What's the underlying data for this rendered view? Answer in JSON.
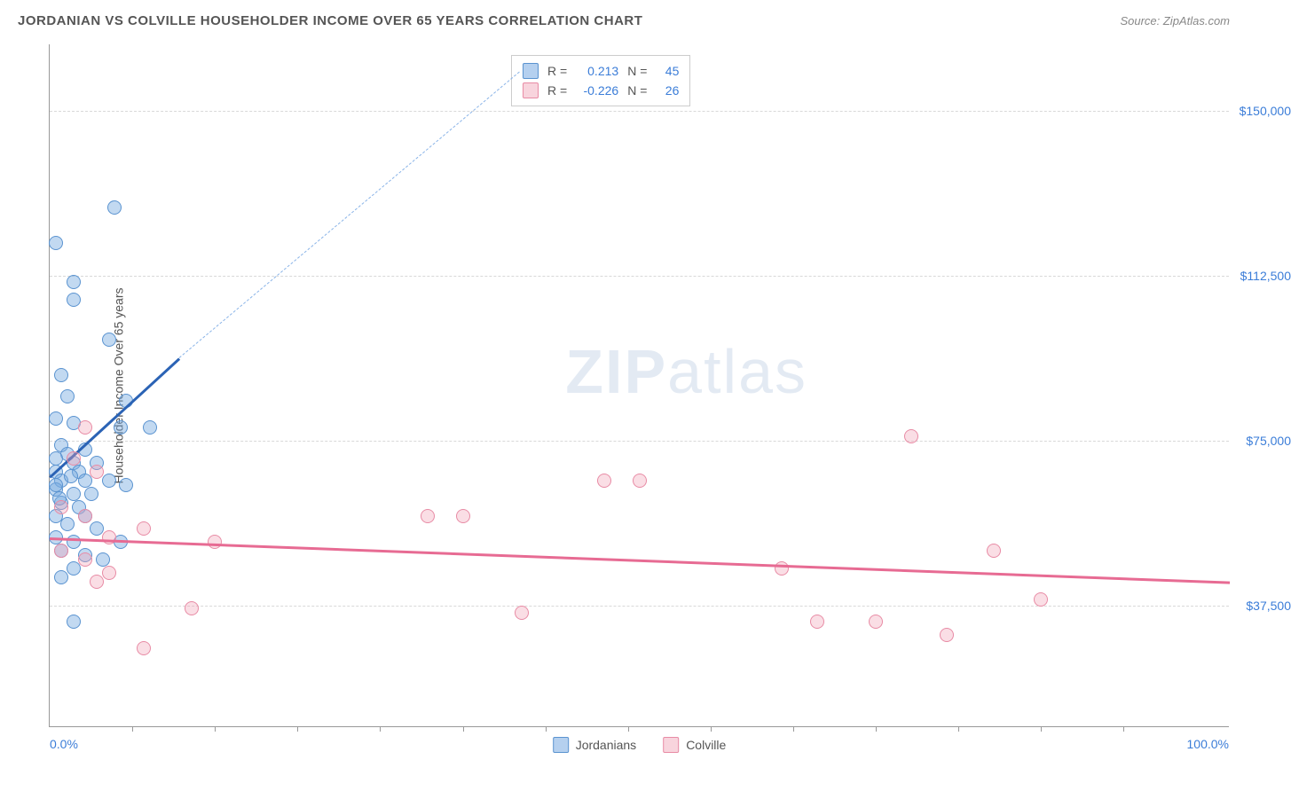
{
  "title": "JORDANIAN VS COLVILLE HOUSEHOLDER INCOME OVER 65 YEARS CORRELATION CHART",
  "source": "Source: ZipAtlas.com",
  "watermark_bold": "ZIP",
  "watermark_rest": "atlas",
  "chart": {
    "type": "scatter",
    "background_color": "#ffffff",
    "grid_color": "#d8d8d8",
    "border_color": "#999999",
    "text_color": "#555555",
    "value_color": "#3b7dd8",
    "yaxis_title": "Householder Income Over 65 years",
    "xlim": [
      0,
      100
    ],
    "ylim": [
      10000,
      165000
    ],
    "yticks": [
      {
        "v": 37500,
        "label": "$37,500"
      },
      {
        "v": 75000,
        "label": "$75,000"
      },
      {
        "v": 112500,
        "label": "$112,500"
      },
      {
        "v": 150000,
        "label": "$150,000"
      }
    ],
    "xticks_pct": [
      7,
      14,
      21,
      28,
      35,
      42,
      49,
      56,
      63,
      70,
      77,
      84,
      91
    ],
    "xaxis_left": "0.0%",
    "xaxis_right": "100.0%",
    "series": [
      {
        "name": "Jordanians",
        "color_fill": "rgba(120,170,225,0.45)",
        "color_stroke": "#5a93d0",
        "marker_radius": 8,
        "trend": {
          "x1": 0,
          "y1": 67000,
          "x2": 11,
          "y2": 94000,
          "color": "#2b63b5",
          "width": 2.5
        },
        "dashed_to_box": true,
        "points": [
          {
            "x": 0.5,
            "y": 120000
          },
          {
            "x": 5.5,
            "y": 128000
          },
          {
            "x": 2,
            "y": 111000
          },
          {
            "x": 2,
            "y": 107000
          },
          {
            "x": 5,
            "y": 98000
          },
          {
            "x": 1,
            "y": 90000
          },
          {
            "x": 1.5,
            "y": 85000
          },
          {
            "x": 6.5,
            "y": 84000
          },
          {
            "x": 0.5,
            "y": 80000
          },
          {
            "x": 2,
            "y": 79000
          },
          {
            "x": 6,
            "y": 78000
          },
          {
            "x": 8.5,
            "y": 78000
          },
          {
            "x": 1,
            "y": 74000
          },
          {
            "x": 3,
            "y": 73000
          },
          {
            "x": 1.5,
            "y": 72000
          },
          {
            "x": 0.5,
            "y": 71000
          },
          {
            "x": 2,
            "y": 70000
          },
          {
            "x": 4,
            "y": 70000
          },
          {
            "x": 0.5,
            "y": 68000
          },
          {
            "x": 2.5,
            "y": 68000
          },
          {
            "x": 1,
            "y": 66000
          },
          {
            "x": 3,
            "y": 66000
          },
          {
            "x": 5,
            "y": 66000
          },
          {
            "x": 6.5,
            "y": 65000
          },
          {
            "x": 0.5,
            "y": 64000
          },
          {
            "x": 2,
            "y": 63000
          },
          {
            "x": 3.5,
            "y": 63000
          },
          {
            "x": 1,
            "y": 61000
          },
          {
            "x": 2.5,
            "y": 60000
          },
          {
            "x": 0.5,
            "y": 58000
          },
          {
            "x": 3,
            "y": 58000
          },
          {
            "x": 1.5,
            "y": 56000
          },
          {
            "x": 4,
            "y": 55000
          },
          {
            "x": 0.5,
            "y": 53000
          },
          {
            "x": 2,
            "y": 52000
          },
          {
            "x": 6,
            "y": 52000
          },
          {
            "x": 1,
            "y": 50000
          },
          {
            "x": 3,
            "y": 49000
          },
          {
            "x": 4.5,
            "y": 48000
          },
          {
            "x": 2,
            "y": 46000
          },
          {
            "x": 1,
            "y": 44000
          },
          {
            "x": 2,
            "y": 34000
          },
          {
            "x": 0.5,
            "y": 65000
          },
          {
            "x": 1.8,
            "y": 67000
          },
          {
            "x": 0.8,
            "y": 62000
          }
        ]
      },
      {
        "name": "Colville",
        "color_fill": "rgba(240,160,180,0.35)",
        "color_stroke": "#e88ba5",
        "marker_radius": 8,
        "trend": {
          "x1": 0,
          "y1": 53000,
          "x2": 100,
          "y2": 43000,
          "color": "#e76b93",
          "width": 2.5
        },
        "dashed_to_box": false,
        "points": [
          {
            "x": 3,
            "y": 78000
          },
          {
            "x": 2,
            "y": 71000
          },
          {
            "x": 4,
            "y": 68000
          },
          {
            "x": 1,
            "y": 60000
          },
          {
            "x": 3,
            "y": 58000
          },
          {
            "x": 8,
            "y": 55000
          },
          {
            "x": 5,
            "y": 53000
          },
          {
            "x": 14,
            "y": 52000
          },
          {
            "x": 1,
            "y": 50000
          },
          {
            "x": 3,
            "y": 48000
          },
          {
            "x": 5,
            "y": 45000
          },
          {
            "x": 4,
            "y": 43000
          },
          {
            "x": 12,
            "y": 37000
          },
          {
            "x": 8,
            "y": 28000
          },
          {
            "x": 32,
            "y": 58000
          },
          {
            "x": 35,
            "y": 58000
          },
          {
            "x": 40,
            "y": 36000
          },
          {
            "x": 47,
            "y": 66000
          },
          {
            "x": 50,
            "y": 66000
          },
          {
            "x": 62,
            "y": 46000
          },
          {
            "x": 65,
            "y": 34000
          },
          {
            "x": 70,
            "y": 34000
          },
          {
            "x": 73,
            "y": 76000
          },
          {
            "x": 76,
            "y": 31000
          },
          {
            "x": 80,
            "y": 50000
          },
          {
            "x": 84,
            "y": 39000
          }
        ]
      }
    ],
    "stats": [
      {
        "series": "Jordanians",
        "r_label": "R =",
        "r": "0.213",
        "n_label": "N =",
        "n": "45"
      },
      {
        "series": "Colville",
        "r_label": "R =",
        "r": "-0.226",
        "n_label": "N =",
        "n": "26"
      }
    ]
  }
}
